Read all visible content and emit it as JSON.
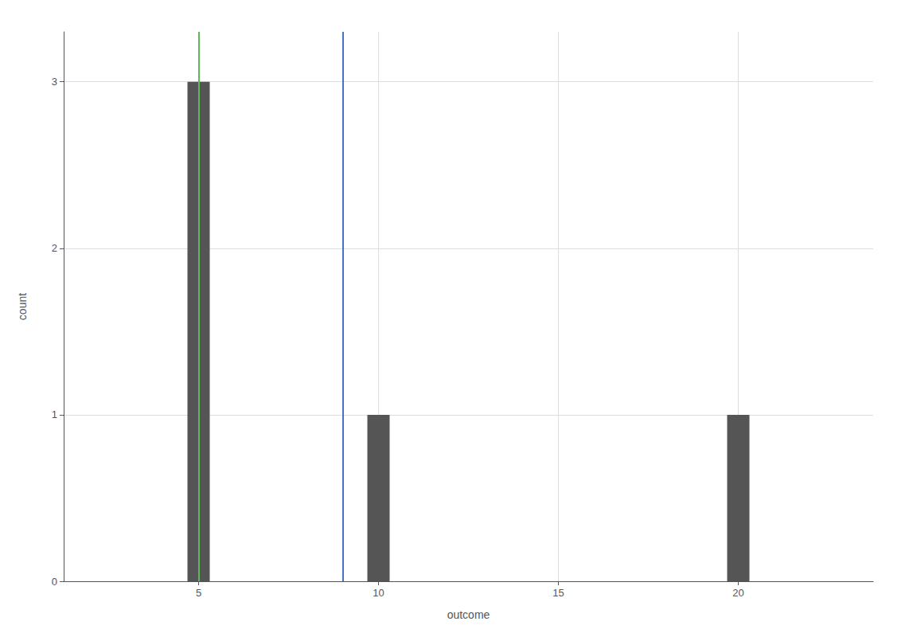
{
  "chart_data": {
    "type": "bar",
    "xlabel": "outcome",
    "ylabel": "count",
    "x": [
      5,
      10,
      20
    ],
    "values": [
      3,
      1,
      1
    ],
    "color": "#555555",
    "vlines": [
      {
        "x": 9.0,
        "color": "#4472C4"
      },
      {
        "x": 5.0,
        "color": "#5cb85c"
      }
    ],
    "xlim": [
      1.25,
      23.75
    ],
    "xticks": [
      5,
      10,
      15,
      20
    ],
    "ylim": [
      0,
      3.3
    ],
    "yticks": [
      0,
      1,
      2,
      3
    ],
    "grid": true
  }
}
